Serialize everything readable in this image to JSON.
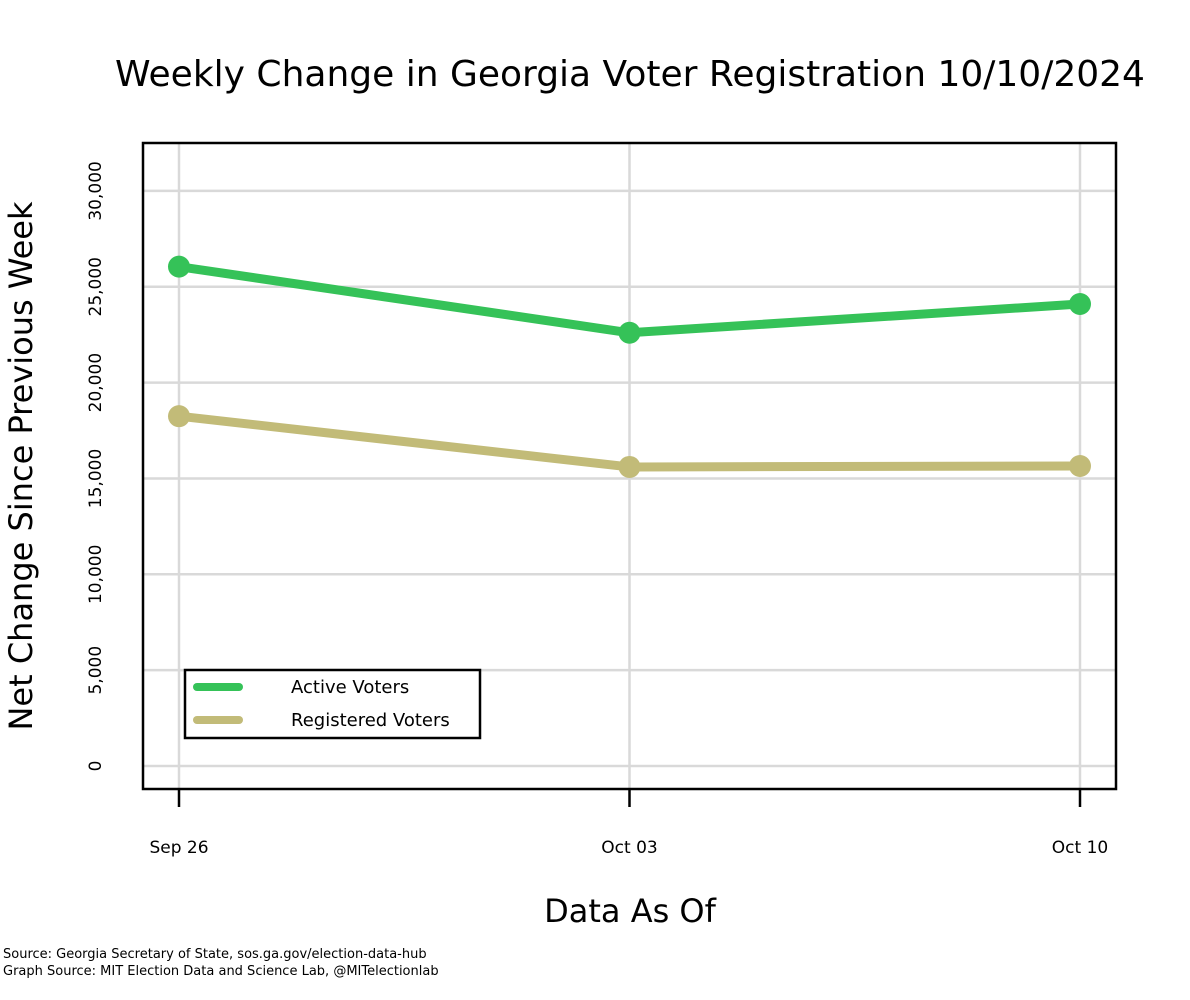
{
  "chart_data": {
    "type": "line",
    "title": "Weekly Change in Georgia Voter Registration 10/10/2024",
    "xlabel": "Data As Of",
    "ylabel": "Net Change Since Previous Week",
    "categories": [
      "Sep 26",
      "Oct 03",
      "Oct 10"
    ],
    "y_ticks": [
      0,
      5000,
      10000,
      15000,
      20000,
      25000,
      30000
    ],
    "y_tick_labels": [
      "0",
      "5,000",
      "10,000",
      "15,000",
      "20,000",
      "25,000",
      "30,000"
    ],
    "ylim": [
      -1200,
      32500
    ],
    "grid": true,
    "legend_position": "bottom-left",
    "series": [
      {
        "name": "Active Voters",
        "color": "#35c258",
        "values": [
          26050,
          22600,
          24100
        ]
      },
      {
        "name": "Registered Voters",
        "color": "#c2bb78",
        "values": [
          18250,
          15600,
          15650
        ]
      }
    ]
  },
  "footer": {
    "source": "Source: Georgia Secretary of State, sos.ga.gov/election-data-hub",
    "graph_source": "Graph Source: MIT Election Data and Science Lab, @MITelectionlab"
  }
}
